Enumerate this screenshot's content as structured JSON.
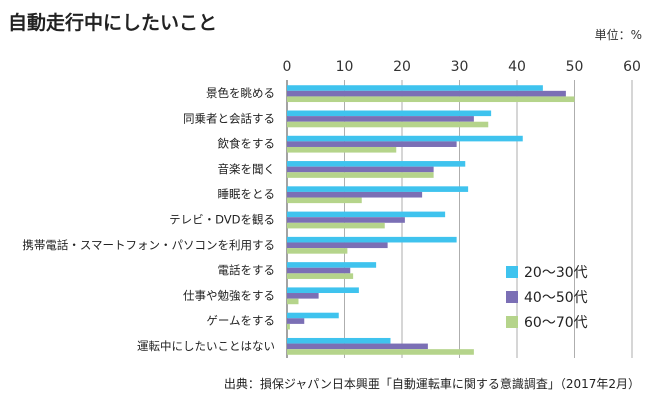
{
  "chart_data": {
    "type": "bar",
    "orientation": "horizontal",
    "title": "自動走行中にしたいこと",
    "unit_label": "単位：%",
    "xlim": [
      0,
      60
    ],
    "ticks": [
      "0",
      "10",
      "20",
      "30",
      "40",
      "50",
      "60"
    ],
    "tick_values": [
      0,
      10,
      20,
      30,
      40,
      50,
      60
    ],
    "grid": true,
    "legend_position": "bottom-right",
    "categories": [
      "景色を眺める",
      "同乗者と会話する",
      "飲食をする",
      "音楽を聞く",
      "睡眠をとる",
      "テレビ・DVDを観る",
      "携帯電話・スマートフォン・パソコンを利用する",
      "電話をする",
      "仕事や勉強をする",
      "ゲームをする",
      "運転中にしたいことはない"
    ],
    "series": [
      {
        "name": "20～30代",
        "color": "#3fc3ee",
        "values": [
          44.5,
          35.5,
          41,
          31,
          31.5,
          27.5,
          29.5,
          15.5,
          12.5,
          9,
          18
        ]
      },
      {
        "name": "40～50代",
        "color": "#7b6fb5",
        "values": [
          48.5,
          32.5,
          29.5,
          25.5,
          23.5,
          20.5,
          17.5,
          11,
          5.5,
          3,
          24.5
        ]
      },
      {
        "name": "60～70代",
        "color": "#b5d48b",
        "values": [
          50,
          35,
          19,
          25.5,
          13,
          17,
          10.5,
          11.5,
          2,
          0.5,
          32.5
        ]
      }
    ],
    "source": "出典：損保ジャパン日本興亜「自動運転車に関する意識調査」（2017年2月）"
  }
}
